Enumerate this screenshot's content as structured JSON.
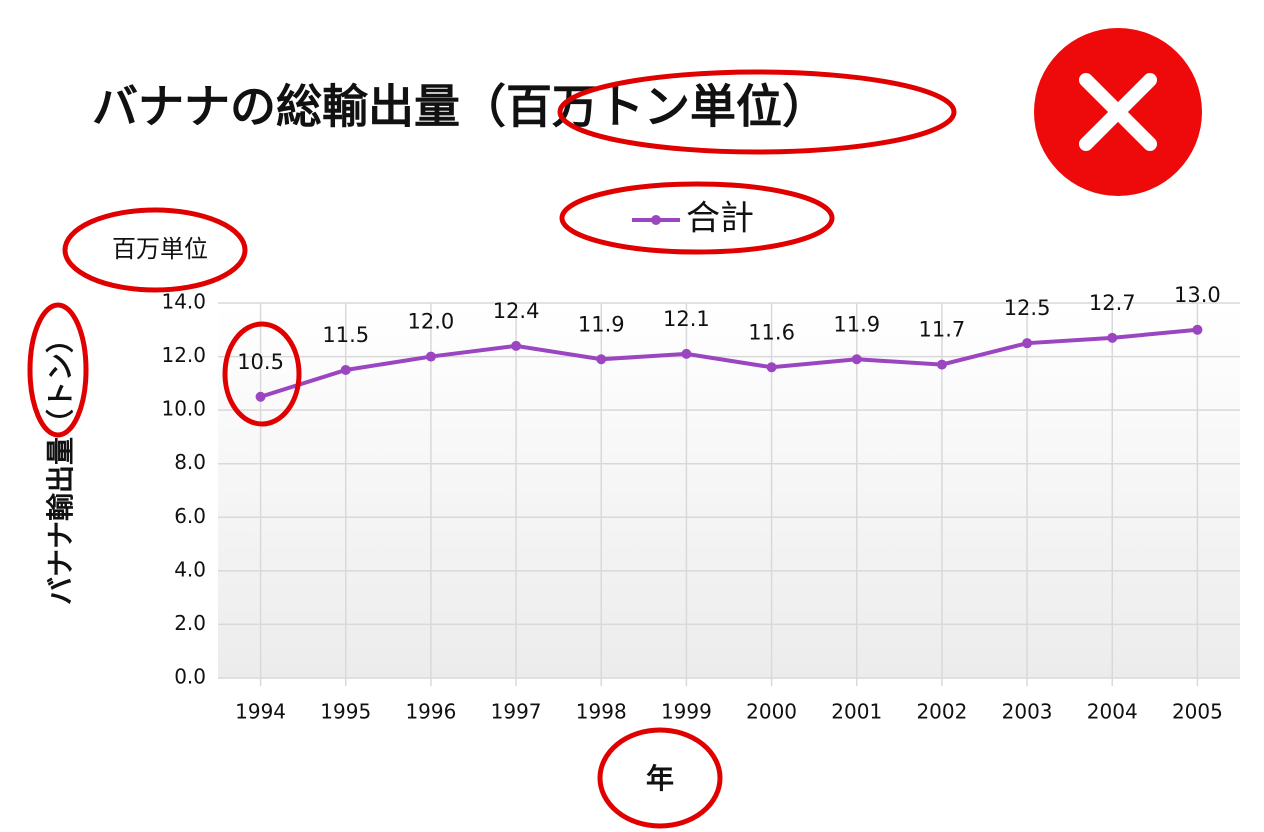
{
  "chart_data": {
    "type": "line",
    "title": "バナナの総輸出量（百万トン単位）",
    "unit_label": "百万単位",
    "y_label": "バナナ輸出量（トン）",
    "x_label": "年",
    "categories": [
      "1994",
      "1995",
      "1996",
      "1997",
      "1998",
      "1999",
      "2000",
      "2001",
      "2002",
      "2003",
      "2004",
      "2005"
    ],
    "series": [
      {
        "name": "合計",
        "color": "#9b45c0",
        "values": [
          10.5,
          11.5,
          12.0,
          12.4,
          11.9,
          12.1,
          11.6,
          11.9,
          11.7,
          12.5,
          12.7,
          13.0
        ],
        "value_labels": [
          "10.5",
          "11.5",
          "12.0",
          "12.4",
          "11.9",
          "12.1",
          "11.6",
          "11.9",
          "11.7",
          "12.5",
          "12.7",
          "13.0"
        ]
      }
    ],
    "ylim": [
      0,
      14
    ],
    "yticks": [
      {
        "value": 0,
        "label": "0.0"
      },
      {
        "value": 2,
        "label": "2.0"
      },
      {
        "value": 4,
        "label": "4.0"
      },
      {
        "value": 6,
        "label": "6.0"
      },
      {
        "value": 8,
        "label": "8.0"
      },
      {
        "value": 10,
        "label": "10.0"
      },
      {
        "value": 12,
        "label": "12.0"
      },
      {
        "value": 14,
        "label": "14.0"
      }
    ],
    "grid": true,
    "legend": "top"
  }
}
